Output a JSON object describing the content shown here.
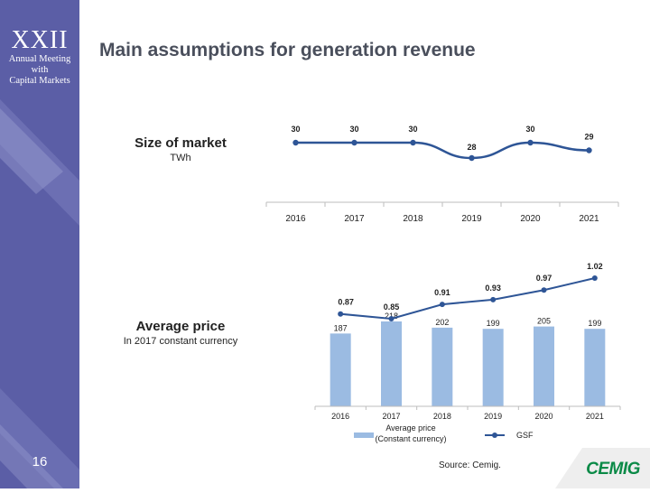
{
  "sidebar": {
    "brand_title": "XXII",
    "brand_line1": "Annual Meeting",
    "brand_line2": "with",
    "brand_line3": "Capital Markets",
    "page_number": "16",
    "color": "#5b5ea6"
  },
  "title": "Main assumptions for generation revenue",
  "market_label": {
    "main": "Size of market",
    "unit": "TWh"
  },
  "price_label": {
    "main": "Average price",
    "unit": "In 2017 constant currency"
  },
  "source": "Source: Cemig.",
  "logo_text": "CEMIG",
  "colors": {
    "line": "#2e5596",
    "bar": "#9bbbe2",
    "logo_green": "#0b8a47"
  },
  "chart_data": [
    {
      "type": "line",
      "categories": [
        "2016",
        "2017",
        "2018",
        "2019",
        "2020",
        "2021"
      ],
      "series": [
        {
          "values": [
            30,
            30,
            30,
            28,
            30,
            29
          ]
        }
      ],
      "value_labels": [
        "30",
        "30",
        "30",
        "28",
        "30",
        "29"
      ],
      "grid": false
    },
    {
      "type": "bar",
      "categories": [
        "2016",
        "2017",
        "2018",
        "2019",
        "2020",
        "2021"
      ],
      "series": [
        {
          "name": "Average price (Constant currency)",
          "type": "bar",
          "values": [
            187,
            218,
            202,
            199,
            205,
            199
          ],
          "value_labels": [
            "187",
            "218",
            "202",
            "199",
            "205",
            "199"
          ]
        },
        {
          "name": "GSF",
          "type": "line",
          "values": [
            0.87,
            0.85,
            0.91,
            0.93,
            0.97,
            1.02
          ],
          "value_labels": [
            "0.87",
            "0.85",
            "0.91",
            "0.93",
            "0.97",
            "1.02"
          ]
        }
      ],
      "legend": {
        "bar_line1": "Average price",
        "bar_line2": "(Constant currency)",
        "line": "GSF",
        "position": "bottom"
      },
      "grid": false
    }
  ]
}
